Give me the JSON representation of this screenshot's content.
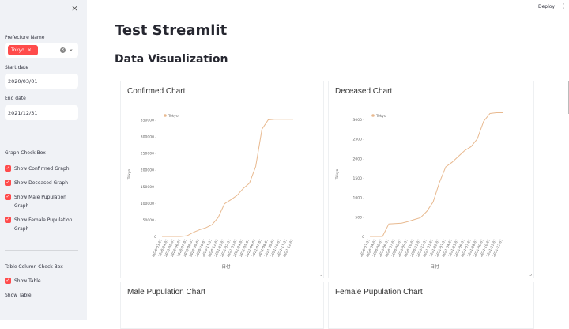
{
  "sidebar": {
    "close_icon": "×",
    "prefecture_label": "Prefecture Name",
    "prefecture_selected": [
      "Tokyo"
    ],
    "tag_remove": "×",
    "start_date_label": "Start date",
    "start_date_value": "2020/03/01",
    "end_date_label": "End date",
    "end_date_value": "2021/12/31",
    "graph_section_label": "Graph Check Box",
    "graph_checkboxes": [
      {
        "label": "Show Confirmed Graph",
        "checked": true
      },
      {
        "label": "Show Deceased Graph",
        "checked": true
      },
      {
        "label": "Show Male Pupulation Graph",
        "checked": true
      },
      {
        "label": "Show Female Pupulation Graph",
        "checked": true
      }
    ],
    "table_section_label": "Table Column Check Box",
    "table_checkboxes": [
      {
        "label": "Show Table",
        "checked": true
      }
    ],
    "trailing_label": "Show Table"
  },
  "header": {
    "deploy_label": "Deploy",
    "menu_icon": "⋮"
  },
  "main": {
    "title": "Test Streamlit",
    "subtitle": "Data Visualization",
    "chart_titles": [
      "Confirmed Chart",
      "Deceased Chart",
      "Male Pupulation Chart",
      "Female Pupulation Chart"
    ]
  },
  "chart_data": [
    {
      "type": "line",
      "title": "Confirmed Chart",
      "xlabel": "日付",
      "ylabel": "Tokyo",
      "legend": [
        "Tokyo"
      ],
      "legend_position": "top-left",
      "color": "#e8b98f",
      "x": [
        "2020-03-01",
        "2020-04-01",
        "2020-05-01",
        "2020-06-01",
        "2020-07-01",
        "2020-08-01",
        "2020-09-01",
        "2020-10-01",
        "2020-11-01",
        "2020-12-01",
        "2021-01-01",
        "2021-02-01",
        "2021-03-01",
        "2021-04-01",
        "2021-05-01",
        "2021-06-01",
        "2021-07-01",
        "2021-08-01",
        "2021-09-01",
        "2021-10-01",
        "2021-11-01",
        "2021-12-01"
      ],
      "values": [
        0,
        0,
        0,
        0,
        2000,
        12000,
        20000,
        26000,
        35000,
        57000,
        98000,
        110000,
        123000,
        144000,
        160000,
        210000,
        322000,
        350000,
        352000,
        352000,
        352000,
        352000
      ],
      "yticks": [
        0,
        50000,
        100000,
        150000,
        200000,
        250000,
        300000,
        350000
      ],
      "ylim": [
        0,
        375000
      ]
    },
    {
      "type": "line",
      "title": "Deceased Chart",
      "xlabel": "日付",
      "ylabel": "Tokyo",
      "legend": [
        "Tokyo"
      ],
      "legend_position": "top-left",
      "color": "#e8b98f",
      "x": [
        "2020-03-01",
        "2020-04-01",
        "2020-05-01",
        "2020-06-01",
        "2020-07-01",
        "2020-08-01",
        "2020-09-01",
        "2020-10-01",
        "2020-11-01",
        "2020-12-01",
        "2021-01-01",
        "2021-02-01",
        "2021-03-01",
        "2021-04-01",
        "2021-05-01",
        "2021-06-01",
        "2021-07-01",
        "2021-08-01",
        "2021-09-01",
        "2021-10-01",
        "2021-11-01",
        "2021-12-01"
      ],
      "values": [
        0,
        0,
        0,
        320,
        330,
        340,
        380,
        430,
        480,
        640,
        880,
        1380,
        1780,
        1900,
        2050,
        2200,
        2300,
        2500,
        2950,
        3150,
        3170,
        3170
      ],
      "yticks": [
        0,
        500,
        1000,
        1500,
        2000,
        2500,
        3000
      ],
      "ylim": [
        0,
        3200
      ]
    }
  ]
}
